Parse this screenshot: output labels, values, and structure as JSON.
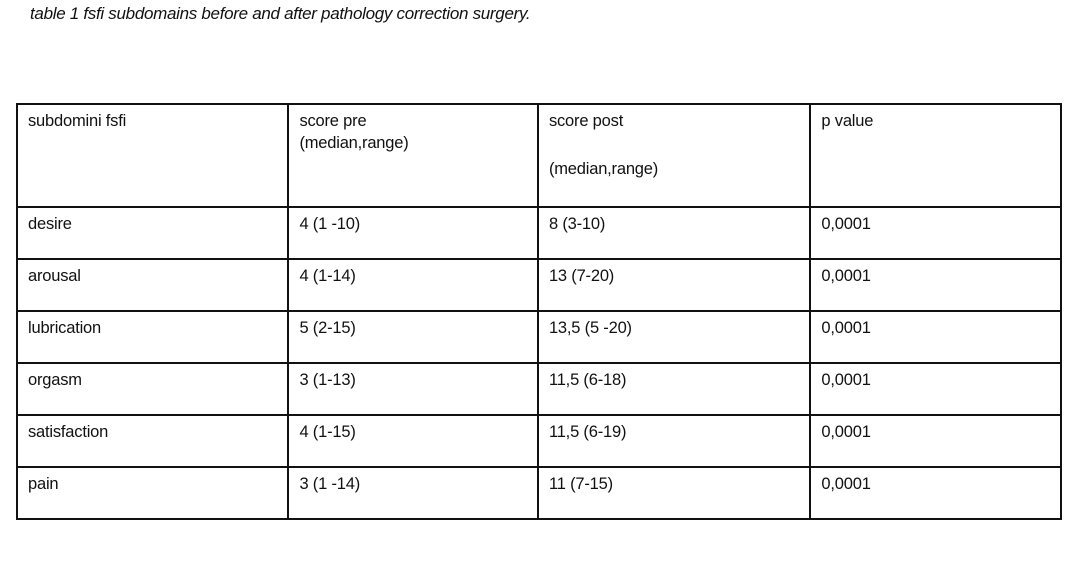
{
  "caption": "table 1 fsfi subdomains before and after pathology correction surgery.",
  "table": {
    "headers": [
      {
        "line1": "subdomini fsfi",
        "line2": ""
      },
      {
        "line1": "score pre",
        "line2": "(median,range)"
      },
      {
        "line1": "score post",
        "line2": "(median,range)"
      },
      {
        "line1": "p value",
        "line2": ""
      }
    ],
    "rows": [
      {
        "subdomain": "desire",
        "pre": "4 (1 -10)",
        "post": "8 (3-10)",
        "p": "0,0001"
      },
      {
        "subdomain": "arousal",
        "pre": "4 (1-14)",
        "post": "13 (7-20)",
        "p": "0,0001"
      },
      {
        "subdomain": "lubrication",
        "pre": "5 (2-15)",
        "post": "13,5 (5 -20)",
        "p": "0,0001"
      },
      {
        "subdomain": "orgasm",
        "pre": "3 (1-13)",
        "post": "11,5 (6-18)",
        "p": "0,0001"
      },
      {
        "subdomain": "satisfaction",
        "pre": "4 (1-15)",
        "post": "11,5 (6-19)",
        "p": "0,0001"
      },
      {
        "subdomain": "pain",
        "pre": "3 (1 -14)",
        "post": "11 (7-15)",
        "p": "0,0001"
      }
    ]
  }
}
